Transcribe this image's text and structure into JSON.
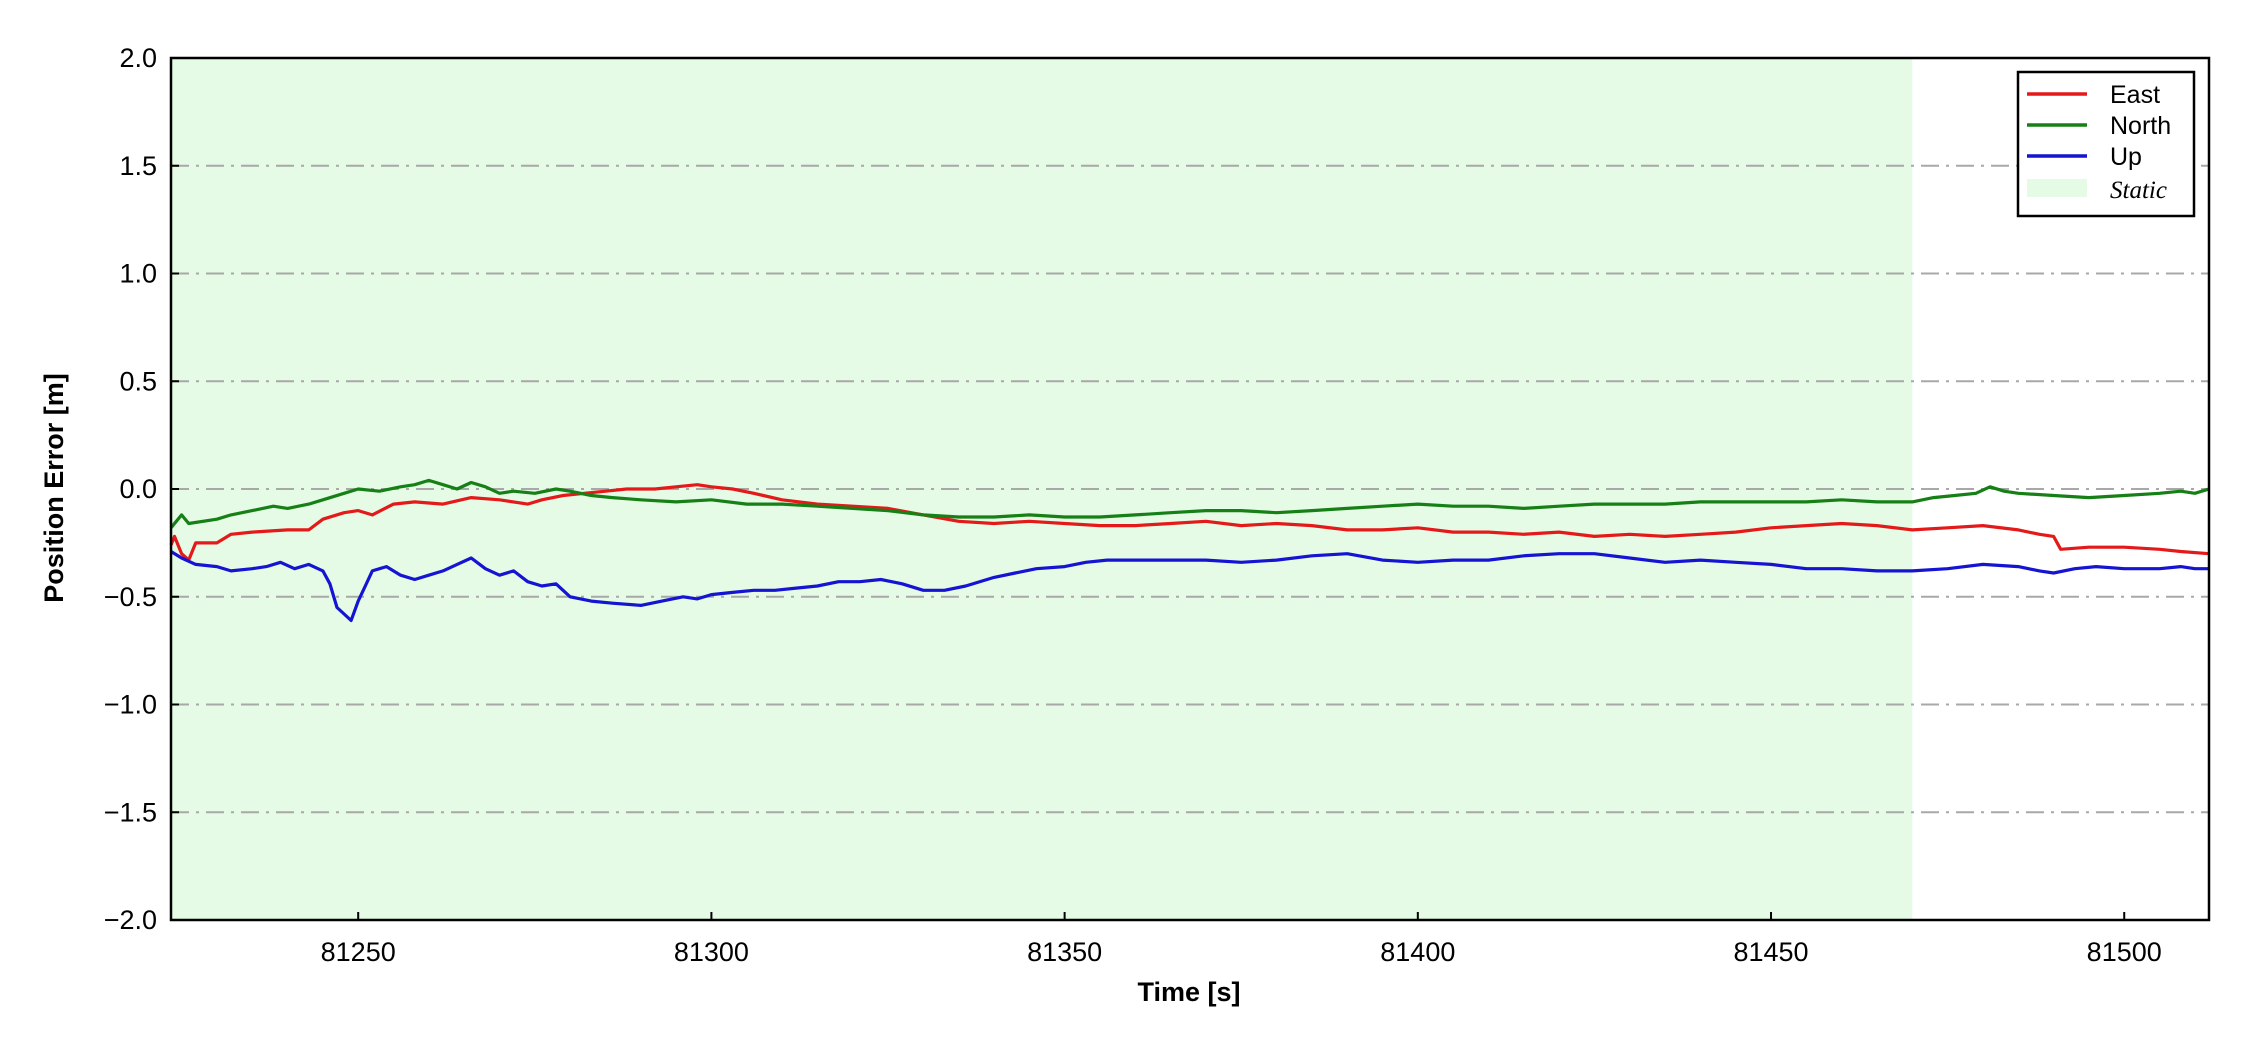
{
  "chart_data": {
    "type": "line",
    "title": "",
    "xlabel": "Time [s]",
    "ylabel": "Position Error [m]",
    "xlim": [
      81223.5,
      81512
    ],
    "ylim": [
      -2.0,
      2.0
    ],
    "xticks": [
      81250,
      81300,
      81350,
      81400,
      81450,
      81500
    ],
    "xtick_labels": [
      "81250",
      "81300",
      "81350",
      "81400",
      "81450",
      "81500"
    ],
    "yticks": [
      2.0,
      1.5,
      1.0,
      0.5,
      0.0,
      -0.5,
      -1.0,
      -1.5,
      -2.0
    ],
    "ytick_labels": [
      "2.0",
      "1.5",
      "1.0",
      "0.5",
      "0.0",
      "−0.5",
      "−1.0",
      "−1.5",
      "−2.0"
    ],
    "grid": "horizontal dash-dot",
    "legend_position": "top-right",
    "shaded_regions": [
      {
        "name": "Static",
        "x_start": 81223.5,
        "x_end": 81470,
        "color": "#e6fbe6"
      }
    ],
    "series": [
      {
        "name": "East",
        "color": "#e41a1a",
        "points": [
          [
            81223.5,
            -0.26
          ],
          [
            81224,
            -0.22
          ],
          [
            81225,
            -0.3
          ],
          [
            81226,
            -0.33
          ],
          [
            81227,
            -0.25
          ],
          [
            81230,
            -0.25
          ],
          [
            81232,
            -0.21
          ],
          [
            81235,
            -0.2
          ],
          [
            81240,
            -0.19
          ],
          [
            81243,
            -0.19
          ],
          [
            81245,
            -0.14
          ],
          [
            81248,
            -0.11
          ],
          [
            81250,
            -0.1
          ],
          [
            81252,
            -0.12
          ],
          [
            81255,
            -0.07
          ],
          [
            81258,
            -0.06
          ],
          [
            81262,
            -0.07
          ],
          [
            81266,
            -0.04
          ],
          [
            81270,
            -0.05
          ],
          [
            81274,
            -0.07
          ],
          [
            81276,
            -0.05
          ],
          [
            81279,
            -0.03
          ],
          [
            81282,
            -0.02
          ],
          [
            81285,
            -0.01
          ],
          [
            81288,
            0.0
          ],
          [
            81292,
            0.0
          ],
          [
            81295,
            0.01
          ],
          [
            81298,
            0.02
          ],
          [
            81300,
            0.01
          ],
          [
            81303,
            0.0
          ],
          [
            81306,
            -0.02
          ],
          [
            81310,
            -0.05
          ],
          [
            81315,
            -0.07
          ],
          [
            81320,
            -0.08
          ],
          [
            81325,
            -0.09
          ],
          [
            81330,
            -0.12
          ],
          [
            81335,
            -0.15
          ],
          [
            81340,
            -0.16
          ],
          [
            81345,
            -0.15
          ],
          [
            81350,
            -0.16
          ],
          [
            81355,
            -0.17
          ],
          [
            81360,
            -0.17
          ],
          [
            81365,
            -0.16
          ],
          [
            81370,
            -0.15
          ],
          [
            81375,
            -0.17
          ],
          [
            81380,
            -0.16
          ],
          [
            81385,
            -0.17
          ],
          [
            81390,
            -0.19
          ],
          [
            81395,
            -0.19
          ],
          [
            81400,
            -0.18
          ],
          [
            81405,
            -0.2
          ],
          [
            81410,
            -0.2
          ],
          [
            81415,
            -0.21
          ],
          [
            81420,
            -0.2
          ],
          [
            81425,
            -0.22
          ],
          [
            81430,
            -0.21
          ],
          [
            81435,
            -0.22
          ],
          [
            81440,
            -0.21
          ],
          [
            81445,
            -0.2
          ],
          [
            81450,
            -0.18
          ],
          [
            81455,
            -0.17
          ],
          [
            81460,
            -0.16
          ],
          [
            81465,
            -0.17
          ],
          [
            81470,
            -0.19
          ],
          [
            81475,
            -0.18
          ],
          [
            81480,
            -0.17
          ],
          [
            81485,
            -0.19
          ],
          [
            81488,
            -0.21
          ],
          [
            81490,
            -0.22
          ],
          [
            81491,
            -0.28
          ],
          [
            81495,
            -0.27
          ],
          [
            81500,
            -0.27
          ],
          [
            81505,
            -0.28
          ],
          [
            81508,
            -0.29
          ],
          [
            81512,
            -0.3
          ]
        ]
      },
      {
        "name": "North",
        "color": "#168016",
        "points": [
          [
            81223.5,
            -0.18
          ],
          [
            81225,
            -0.12
          ],
          [
            81226,
            -0.16
          ],
          [
            81230,
            -0.14
          ],
          [
            81232,
            -0.12
          ],
          [
            81235,
            -0.1
          ],
          [
            81238,
            -0.08
          ],
          [
            81240,
            -0.09
          ],
          [
            81243,
            -0.07
          ],
          [
            81245,
            -0.05
          ],
          [
            81248,
            -0.02
          ],
          [
            81250,
            0.0
          ],
          [
            81253,
            -0.01
          ],
          [
            81256,
            0.01
          ],
          [
            81258,
            0.02
          ],
          [
            81260,
            0.04
          ],
          [
            81262,
            0.02
          ],
          [
            81264,
            0.0
          ],
          [
            81266,
            0.03
          ],
          [
            81268,
            0.01
          ],
          [
            81270,
            -0.02
          ],
          [
            81272,
            -0.01
          ],
          [
            81275,
            -0.02
          ],
          [
            81278,
            0.0
          ],
          [
            81280,
            -0.01
          ],
          [
            81283,
            -0.03
          ],
          [
            81286,
            -0.04
          ],
          [
            81290,
            -0.05
          ],
          [
            81295,
            -0.06
          ],
          [
            81300,
            -0.05
          ],
          [
            81305,
            -0.07
          ],
          [
            81310,
            -0.07
          ],
          [
            81315,
            -0.08
          ],
          [
            81320,
            -0.09
          ],
          [
            81325,
            -0.1
          ],
          [
            81330,
            -0.12
          ],
          [
            81335,
            -0.13
          ],
          [
            81340,
            -0.13
          ],
          [
            81345,
            -0.12
          ],
          [
            81350,
            -0.13
          ],
          [
            81355,
            -0.13
          ],
          [
            81360,
            -0.12
          ],
          [
            81365,
            -0.11
          ],
          [
            81370,
            -0.1
          ],
          [
            81375,
            -0.1
          ],
          [
            81380,
            -0.11
          ],
          [
            81385,
            -0.1
          ],
          [
            81390,
            -0.09
          ],
          [
            81395,
            -0.08
          ],
          [
            81400,
            -0.07
          ],
          [
            81405,
            -0.08
          ],
          [
            81410,
            -0.08
          ],
          [
            81415,
            -0.09
          ],
          [
            81420,
            -0.08
          ],
          [
            81425,
            -0.07
          ],
          [
            81430,
            -0.07
          ],
          [
            81435,
            -0.07
          ],
          [
            81440,
            -0.06
          ],
          [
            81445,
            -0.06
          ],
          [
            81450,
            -0.06
          ],
          [
            81455,
            -0.06
          ],
          [
            81460,
            -0.05
          ],
          [
            81465,
            -0.06
          ],
          [
            81470,
            -0.06
          ],
          [
            81473,
            -0.04
          ],
          [
            81476,
            -0.03
          ],
          [
            81479,
            -0.02
          ],
          [
            81481,
            0.01
          ],
          [
            81483,
            -0.01
          ],
          [
            81485,
            -0.02
          ],
          [
            81490,
            -0.03
          ],
          [
            81495,
            -0.04
          ],
          [
            81500,
            -0.03
          ],
          [
            81505,
            -0.02
          ],
          [
            81508,
            -0.01
          ],
          [
            81510,
            -0.02
          ],
          [
            81512,
            0.0
          ]
        ]
      },
      {
        "name": "Up",
        "color": "#1414d2",
        "points": [
          [
            81223.5,
            -0.29
          ],
          [
            81225,
            -0.32
          ],
          [
            81227,
            -0.35
          ],
          [
            81230,
            -0.36
          ],
          [
            81232,
            -0.38
          ],
          [
            81235,
            -0.37
          ],
          [
            81237,
            -0.36
          ],
          [
            81239,
            -0.34
          ],
          [
            81241,
            -0.37
          ],
          [
            81243,
            -0.35
          ],
          [
            81245,
            -0.38
          ],
          [
            81246,
            -0.44
          ],
          [
            81247,
            -0.55
          ],
          [
            81248,
            -0.58
          ],
          [
            81249,
            -0.61
          ],
          [
            81250,
            -0.52
          ],
          [
            81251,
            -0.45
          ],
          [
            81252,
            -0.38
          ],
          [
            81254,
            -0.36
          ],
          [
            81256,
            -0.4
          ],
          [
            81258,
            -0.42
          ],
          [
            81260,
            -0.4
          ],
          [
            81262,
            -0.38
          ],
          [
            81264,
            -0.35
          ],
          [
            81266,
            -0.32
          ],
          [
            81268,
            -0.37
          ],
          [
            81270,
            -0.4
          ],
          [
            81272,
            -0.38
          ],
          [
            81274,
            -0.43
          ],
          [
            81276,
            -0.45
          ],
          [
            81278,
            -0.44
          ],
          [
            81280,
            -0.5
          ],
          [
            81283,
            -0.52
          ],
          [
            81286,
            -0.53
          ],
          [
            81290,
            -0.54
          ],
          [
            81293,
            -0.52
          ],
          [
            81296,
            -0.5
          ],
          [
            81298,
            -0.51
          ],
          [
            81300,
            -0.49
          ],
          [
            81303,
            -0.48
          ],
          [
            81306,
            -0.47
          ],
          [
            81309,
            -0.47
          ],
          [
            81312,
            -0.46
          ],
          [
            81315,
            -0.45
          ],
          [
            81318,
            -0.43
          ],
          [
            81321,
            -0.43
          ],
          [
            81324,
            -0.42
          ],
          [
            81327,
            -0.44
          ],
          [
            81330,
            -0.47
          ],
          [
            81333,
            -0.47
          ],
          [
            81336,
            -0.45
          ],
          [
            81340,
            -0.41
          ],
          [
            81343,
            -0.39
          ],
          [
            81346,
            -0.37
          ],
          [
            81350,
            -0.36
          ],
          [
            81353,
            -0.34
          ],
          [
            81356,
            -0.33
          ],
          [
            81360,
            -0.33
          ],
          [
            81365,
            -0.33
          ],
          [
            81370,
            -0.33
          ],
          [
            81375,
            -0.34
          ],
          [
            81380,
            -0.33
          ],
          [
            81385,
            -0.31
          ],
          [
            81390,
            -0.3
          ],
          [
            81395,
            -0.33
          ],
          [
            81400,
            -0.34
          ],
          [
            81405,
            -0.33
          ],
          [
            81410,
            -0.33
          ],
          [
            81415,
            -0.31
          ],
          [
            81420,
            -0.3
          ],
          [
            81425,
            -0.3
          ],
          [
            81430,
            -0.32
          ],
          [
            81435,
            -0.34
          ],
          [
            81440,
            -0.33
          ],
          [
            81445,
            -0.34
          ],
          [
            81450,
            -0.35
          ],
          [
            81455,
            -0.37
          ],
          [
            81460,
            -0.37
          ],
          [
            81465,
            -0.38
          ],
          [
            81470,
            -0.38
          ],
          [
            81475,
            -0.37
          ],
          [
            81480,
            -0.35
          ],
          [
            81485,
            -0.36
          ],
          [
            81488,
            -0.38
          ],
          [
            81490,
            -0.39
          ],
          [
            81493,
            -0.37
          ],
          [
            81496,
            -0.36
          ],
          [
            81500,
            -0.37
          ],
          [
            81505,
            -0.37
          ],
          [
            81508,
            -0.36
          ],
          [
            81510,
            -0.37
          ],
          [
            81512,
            -0.37
          ]
        ]
      }
    ]
  },
  "legend": {
    "items": [
      {
        "label": "East",
        "color": "#e41a1a",
        "kind": "line"
      },
      {
        "label": "North",
        "color": "#168016",
        "kind": "line"
      },
      {
        "label": "Up",
        "color": "#1414d2",
        "kind": "line"
      },
      {
        "label": "Static",
        "color": "#e6fbe6",
        "kind": "patch"
      }
    ]
  },
  "colors": {
    "grid": "#a8a8a8",
    "axis": "#000000",
    "static_fill": "#e6fbe6"
  }
}
